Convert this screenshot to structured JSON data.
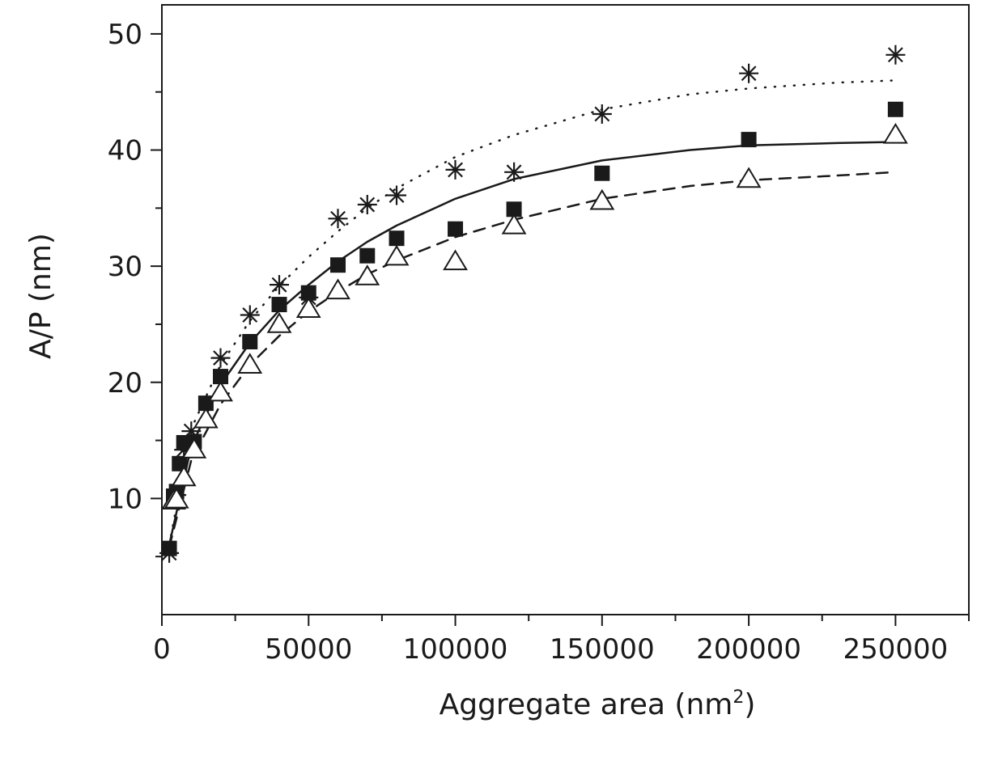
{
  "chart_data": {
    "type": "scatter",
    "title": "",
    "xlabel": "Aggregate area (nm",
    "xlabel_sup": "2",
    "xlabel_close": ")",
    "ylabel": "A/P (nm)",
    "xlim": [
      0,
      275000
    ],
    "ylim": [
      0,
      52.5
    ],
    "x_ticks": [
      0,
      50000,
      100000,
      150000,
      200000,
      250000
    ],
    "x_tick_labels": [
      "0",
      "50000",
      "100000",
      "150000",
      "200000",
      "250000"
    ],
    "x_minor_ticks": [
      25000,
      75000,
      125000,
      175000,
      225000,
      275000
    ],
    "y_ticks": [
      10,
      20,
      30,
      40,
      50
    ],
    "y_tick_labels": [
      "10",
      "20",
      "30",
      "40",
      "50"
    ],
    "y_minor_ticks": [
      5,
      15,
      25,
      35,
      45
    ],
    "grid": false,
    "legend": "none",
    "colors": {
      "ink": "#1a1a1a",
      "background": "#ffffff"
    },
    "series": [
      {
        "marker": "asterisk",
        "fit_style": "dotted",
        "x": [
          2500,
          5000,
          7500,
          10000,
          20000,
          30000,
          40000,
          50000,
          60000,
          70000,
          80000,
          100000,
          120000,
          150000,
          200000,
          250000
        ],
        "y": [
          5.3,
          10.3,
          14.2,
          15.8,
          22.1,
          25.8,
          28.4,
          27.3,
          34.1,
          35.3,
          36.1,
          38.3,
          38.1,
          43.1,
          46.6,
          48.2
        ],
        "fit_x": [
          2500,
          10000,
          20000,
          30000,
          40000,
          50000,
          60000,
          70000,
          80000,
          100000,
          120000,
          150000,
          180000,
          200000,
          230000,
          250000
        ],
        "fit_y": [
          6.0,
          16.0,
          21.5,
          25.3,
          28.3,
          30.8,
          33.0,
          35.0,
          36.7,
          39.4,
          41.3,
          43.5,
          44.8,
          45.3,
          45.8,
          46.0
        ]
      },
      {
        "marker": "filled-square",
        "fit_style": "solid",
        "x": [
          2500,
          4000,
          5000,
          6000,
          7500,
          9000,
          11000,
          15000,
          20000,
          30000,
          40000,
          50000,
          60000,
          70000,
          80000,
          100000,
          120000,
          150000,
          200000,
          250000
        ],
        "y": [
          5.7,
          10.2,
          10.6,
          13.0,
          14.8,
          14.7,
          14.9,
          18.2,
          20.5,
          23.5,
          26.7,
          27.7,
          30.1,
          30.9,
          32.4,
          33.2,
          34.9,
          38.0,
          40.9,
          43.5
        ],
        "fit_x": [
          2500,
          10000,
          20000,
          30000,
          40000,
          50000,
          60000,
          70000,
          80000,
          100000,
          120000,
          150000,
          180000,
          200000,
          230000,
          250000
        ],
        "fit_y": [
          6.0,
          14.5,
          19.8,
          23.4,
          26.2,
          28.4,
          30.4,
          32.1,
          33.5,
          35.8,
          37.5,
          39.1,
          40.0,
          40.4,
          40.6,
          40.7
        ]
      },
      {
        "marker": "open-triangle",
        "fit_style": "dashed",
        "x": [
          4000,
          5000,
          7500,
          11000,
          15000,
          20000,
          30000,
          40000,
          50000,
          60000,
          70000,
          80000,
          100000,
          120000,
          150000,
          200000,
          250000
        ],
        "y": [
          9.8,
          9.9,
          11.8,
          14.2,
          16.8,
          19.1,
          21.5,
          25.0,
          26.3,
          27.9,
          29.1,
          30.8,
          30.4,
          33.5,
          35.6,
          37.5,
          41.3
        ],
        "fit_x": [
          2500,
          10000,
          20000,
          30000,
          40000,
          50000,
          60000,
          70000,
          80000,
          100000,
          120000,
          150000,
          180000,
          200000,
          230000,
          250000
        ],
        "fit_y": [
          5.8,
          13.3,
          18.1,
          21.5,
          24.0,
          26.1,
          27.8,
          29.3,
          30.5,
          32.5,
          34.0,
          35.8,
          36.9,
          37.4,
          37.8,
          38.1
        ]
      }
    ]
  }
}
